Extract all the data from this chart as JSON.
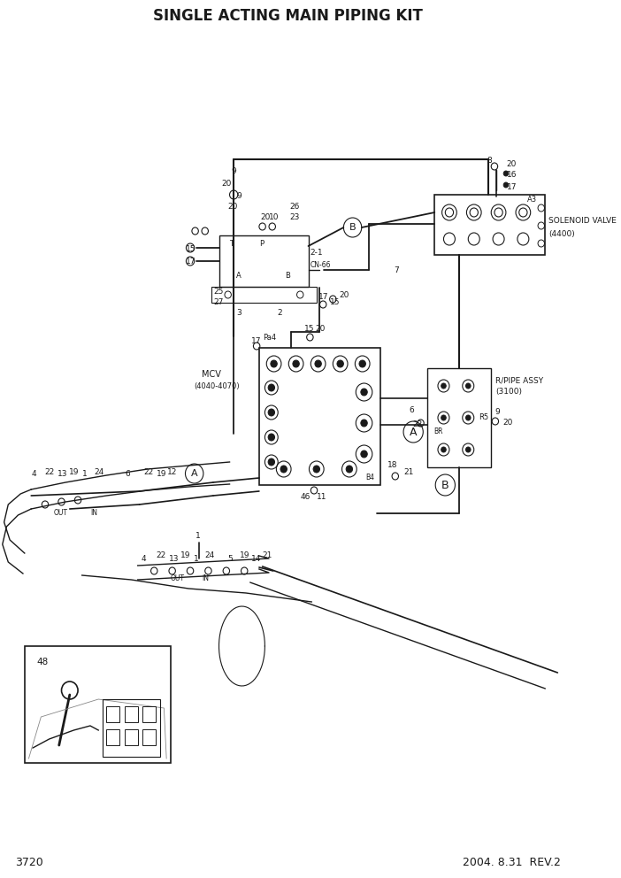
{
  "title": "SINGLE ACTING MAIN PIPING KIT",
  "page_number": "3720",
  "date_rev": "2004. 8.31  REV.2",
  "bg_color": "#ffffff",
  "line_color": "#1a1a1a",
  "text_color": "#1a1a1a",
  "title_fontsize": 12,
  "footer_fontsize": 9,
  "label_fontsize": 6.5,
  "small_fontsize": 5.5
}
